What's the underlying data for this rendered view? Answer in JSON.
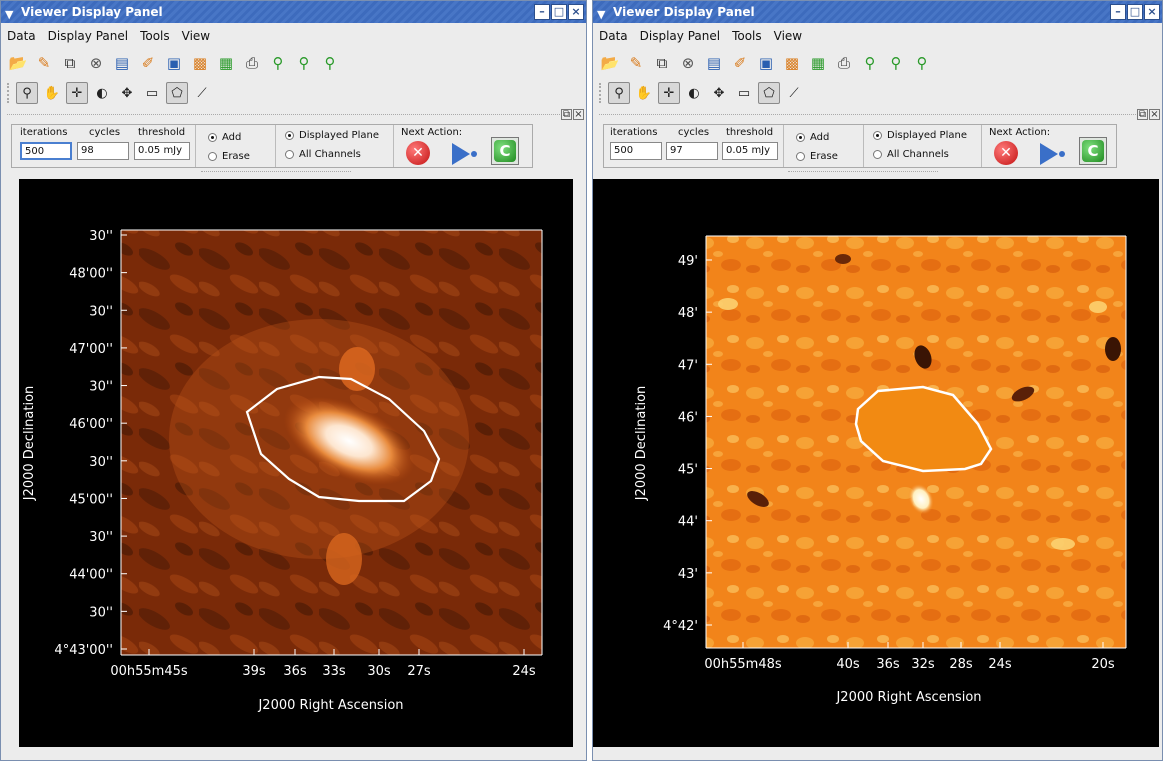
{
  "windows": [
    {
      "title": "Viewer Display Panel",
      "menu": [
        "Data",
        "Display Panel",
        "Tools",
        "View"
      ],
      "clean": {
        "iterations_label": "iterations",
        "cycles_label": "cycles",
        "threshold_label": "threshold",
        "iterations": "500",
        "cycles": "98",
        "threshold": "0.05 mJy",
        "add_label": "Add",
        "erase_label": "Erase",
        "displayed_plane_label": "Displayed Plane",
        "all_channels_label": "All Channels",
        "next_action_label": "Next Action:"
      },
      "plot": {
        "y_axis_label": "J2000 Declination",
        "x_axis_label": "J2000 Right Ascension",
        "y_ticks": [
          "30''",
          "48'00''",
          "30''",
          "47'00''",
          "30''",
          "46'00''",
          "30''",
          "45'00''",
          "30''",
          "44'00''",
          "30''",
          "4°43'00''"
        ],
        "x_ticks": [
          "00h55m45s",
          "39s",
          "36s",
          "33s",
          "30s",
          "27s",
          "24s"
        ],
        "colormap": "dark-orange",
        "colors": {
          "background": "#000000",
          "image_dark": "#3a1404",
          "image_mid": "#b5460c",
          "image_bright": "#ffffff",
          "contour": "#ffffff"
        }
      }
    },
    {
      "title": "Viewer Display Panel",
      "menu": [
        "Data",
        "Display Panel",
        "Tools",
        "View"
      ],
      "clean": {
        "iterations_label": "iterations",
        "cycles_label": "cycles",
        "threshold_label": "threshold",
        "iterations": "500",
        "cycles": "97",
        "threshold": "0.05 mJy",
        "add_label": "Add",
        "erase_label": "Erase",
        "displayed_plane_label": "Displayed Plane",
        "all_channels_label": "All Channels",
        "next_action_label": "Next Action:"
      },
      "plot": {
        "y_axis_label": "J2000 Declination",
        "x_axis_label": "J2000 Right Ascension",
        "y_ticks": [
          "49'",
          "48'",
          "47'",
          "46'",
          "45'",
          "44'",
          "43'",
          "4°42'"
        ],
        "x_ticks": [
          "00h55m48s",
          "40s",
          "36s",
          "32s",
          "28s",
          "24s",
          "20s"
        ],
        "colormap": "bright-orange",
        "colors": {
          "background": "#000000",
          "image_dark": "#3a1404",
          "image_mid": "#f28a12",
          "image_bright": "#fff0c0",
          "contour": "#ffffff"
        }
      }
    }
  ]
}
